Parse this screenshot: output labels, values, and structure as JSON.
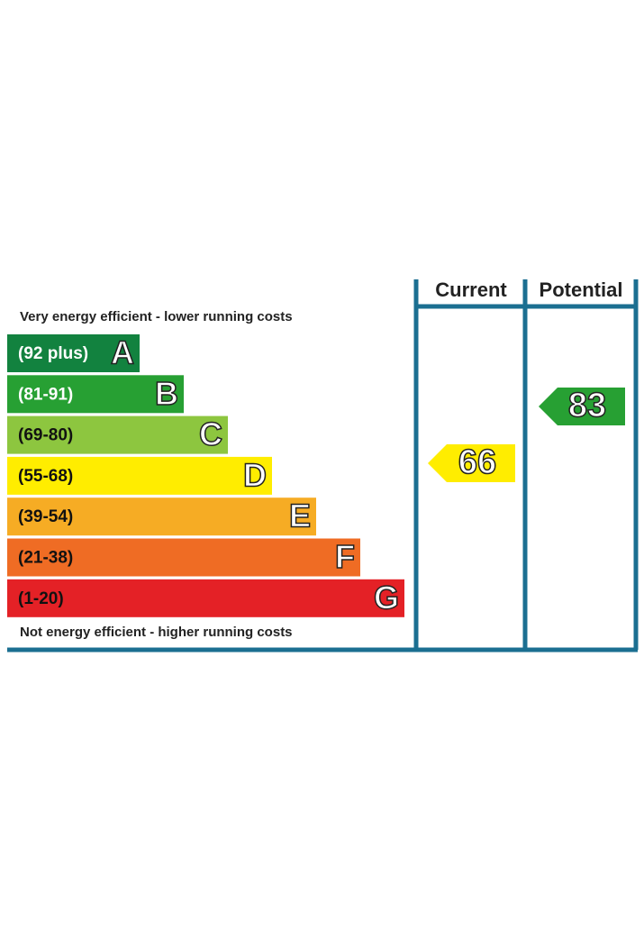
{
  "header": {
    "current": "Current",
    "potential": "Potential"
  },
  "top_note": "Very energy efficient - lower running costs",
  "bottom_note": "Not energy efficient - higher running costs",
  "bands": [
    {
      "range": "(92 plus)",
      "letter": "A",
      "color": "#12823f",
      "text_color": "#ffffff"
    },
    {
      "range": "(81-91)",
      "letter": "B",
      "color": "#27a033",
      "text_color": "#ffffff"
    },
    {
      "range": "(69-80)",
      "letter": "C",
      "color": "#8dc63f",
      "text_color": "#111111"
    },
    {
      "range": "(55-68)",
      "letter": "D",
      "color": "#ffed00",
      "text_color": "#111111"
    },
    {
      "range": "(39-54)",
      "letter": "E",
      "color": "#f6ac24",
      "text_color": "#111111"
    },
    {
      "range": "(21-38)",
      "letter": "F",
      "color": "#ef6c24",
      "text_color": "#111111"
    },
    {
      "range": "(1-20)",
      "letter": "G",
      "color": "#e42126",
      "text_color": "#111111"
    }
  ],
  "current": {
    "value": 66,
    "color": "#ffed00"
  },
  "potential": {
    "value": 83,
    "color": "#27a033"
  }
}
